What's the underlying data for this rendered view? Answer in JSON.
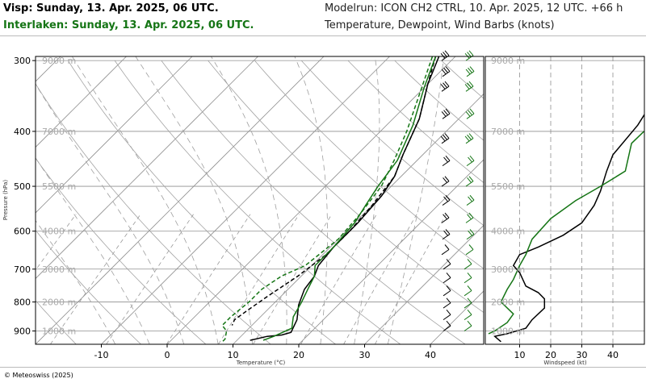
{
  "header": {
    "title_station1": "Visp: Sunday, 13. Apr. 2025, 06 UTC.",
    "title_station2": "Interlaken: Sunday, 13. Apr. 2025, 06 UTC.",
    "modelrun": "Modelrun: ICON CH2 CTRL, 10. Apr. 2025, 12 UTC. +66 h",
    "subtitle": "Temperature, Dewpoint, Wind Barbs (knots)"
  },
  "colors": {
    "station1": "#000000",
    "station2": "#157515",
    "grid": "#8f8f8f"
  },
  "credit": "© Meteoswiss (2025)",
  "chart_data": [
    {
      "type": "line",
      "title": "Temperature, Dewpoint, Wind Barbs (knots)",
      "xlabel": "Temperature (°C)",
      "ylabel": "Pressure (hPa)",
      "xlim": [
        -20,
        48
      ],
      "ylim": [
        950,
        295
      ],
      "yscale": "log",
      "x_ticks": [
        -10,
        0,
        10,
        20,
        30,
        40
      ],
      "y_ticks": [
        300,
        400,
        500,
        600,
        700,
        800,
        900
      ],
      "height_labels": [
        {
          "label": "9000 m",
          "p": 300
        },
        {
          "label": "7000 m",
          "p": 400
        },
        {
          "label": "5500 m",
          "p": 500
        },
        {
          "label": "4000 m",
          "p": 600
        },
        {
          "label": "3000 m",
          "p": 700
        },
        {
          "label": "2000 m",
          "p": 800
        },
        {
          "label": "1000 m",
          "p": 900
        }
      ],
      "grid": true,
      "series": [
        {
          "station": "Visp",
          "kind": "temperature",
          "style": "solid",
          "points": [
            [
              -2.5,
              295
            ],
            [
              0,
              330
            ],
            [
              4,
              380
            ],
            [
              7,
              440
            ],
            [
              9,
              480
            ],
            [
              10,
              520
            ],
            [
              10.5,
              580
            ],
            [
              10.5,
              640
            ],
            [
              11,
              690
            ],
            [
              12,
              720
            ],
            [
              12.5,
              760
            ],
            [
              14,
              810
            ],
            [
              16,
              860
            ],
            [
              17,
              905
            ],
            [
              16,
              915
            ],
            [
              14,
              920
            ],
            [
              12,
              935
            ]
          ]
        },
        {
          "station": "Visp",
          "kind": "dewpoint",
          "style": "dashed",
          "points": [
            [
              -3,
              295
            ],
            [
              0,
              330
            ],
            [
              4,
              380
            ],
            [
              7,
              440
            ],
            [
              9,
              480
            ],
            [
              10,
              540
            ],
            [
              10.5,
              600
            ],
            [
              10.5,
              660
            ],
            [
              9.5,
              720
            ],
            [
              8,
              780
            ],
            [
              7,
              830
            ],
            [
              6.5,
              860
            ],
            [
              7,
              880
            ]
          ]
        },
        {
          "station": "Interlaken",
          "kind": "temperature",
          "style": "solid",
          "points": [
            [
              -3,
              295
            ],
            [
              0,
              335
            ],
            [
              4,
              390
            ],
            [
              7,
              450
            ],
            [
              8,
              500
            ],
            [
              9,
              540
            ],
            [
              10,
              580
            ],
            [
              10.5,
              640
            ],
            [
              10.5,
              690
            ],
            [
              12,
              720
            ],
            [
              13,
              760
            ],
            [
              14,
              800
            ],
            [
              15,
              850
            ],
            [
              16.5,
              890
            ],
            [
              15,
              920
            ],
            [
              14,
              935
            ]
          ]
        },
        {
          "station": "Interlaken",
          "kind": "dewpoint",
          "style": "dashed",
          "points": [
            [
              -3.5,
              295
            ],
            [
              0,
              340
            ],
            [
              4,
              400
            ],
            [
              6.5,
              450
            ],
            [
              8.5,
              500
            ],
            [
              9.5,
              560
            ],
            [
              10,
              620
            ],
            [
              9,
              690
            ],
            [
              7,
              720
            ],
            [
              6,
              760
            ],
            [
              6,
              800
            ],
            [
              5.5,
              850
            ],
            [
              5.5,
              880
            ],
            [
              7,
              900
            ],
            [
              8,
              930
            ],
            [
              8,
              940
            ]
          ]
        }
      ],
      "wind_barbs": {
        "Visp": {
          "levels": [
            300,
            320,
            340,
            380,
            420,
            460,
            500,
            540,
            580,
            620,
            660,
            700,
            740,
            780,
            820,
            860,
            900
          ]
        },
        "Interlaken": {
          "levels": [
            300,
            320,
            340,
            380,
            420,
            460,
            500,
            540,
            580,
            620,
            660,
            700,
            740,
            780,
            820,
            860,
            900
          ]
        }
      }
    },
    {
      "type": "line",
      "xlabel": "Windspeed (kt)",
      "xlim": [
        0,
        48
      ],
      "x_ticks": [
        10,
        20,
        30,
        40
      ],
      "ylim": [
        950,
        295
      ],
      "yscale": "log",
      "height_labels": [
        "9000 m",
        "7000 m",
        "5500 m",
        "4000 m",
        "3000 m",
        "2000 m",
        "1000 m"
      ],
      "grid": true,
      "series": [
        {
          "station": "Visp",
          "points": [
            [
              52,
              360
            ],
            [
              48,
              390
            ],
            [
              40,
              440
            ],
            [
              38,
              470
            ],
            [
              36,
              510
            ],
            [
              34,
              540
            ],
            [
              30,
              580
            ],
            [
              24,
              610
            ],
            [
              16,
              640
            ],
            [
              10,
              660
            ],
            [
              8,
              690
            ],
            [
              10,
              710
            ],
            [
              12,
              750
            ],
            [
              16,
              770
            ],
            [
              18,
              790
            ],
            [
              18,
              820
            ],
            [
              14,
              860
            ],
            [
              12,
              890
            ],
            [
              6,
              910
            ],
            [
              2,
              920
            ],
            [
              4,
              940
            ]
          ]
        },
        {
          "station": "Interlaken",
          "points": [
            [
              50,
              400
            ],
            [
              46,
              420
            ],
            [
              44,
              470
            ],
            [
              36,
              500
            ],
            [
              28,
              530
            ],
            [
              20,
              570
            ],
            [
              14,
              620
            ],
            [
              12,
              660
            ],
            [
              10,
              690
            ],
            [
              8,
              730
            ],
            [
              6,
              760
            ],
            [
              4,
              800
            ],
            [
              8,
              840
            ],
            [
              6,
              870
            ],
            [
              2,
              900
            ],
            [
              0,
              910
            ]
          ]
        }
      ]
    }
  ]
}
